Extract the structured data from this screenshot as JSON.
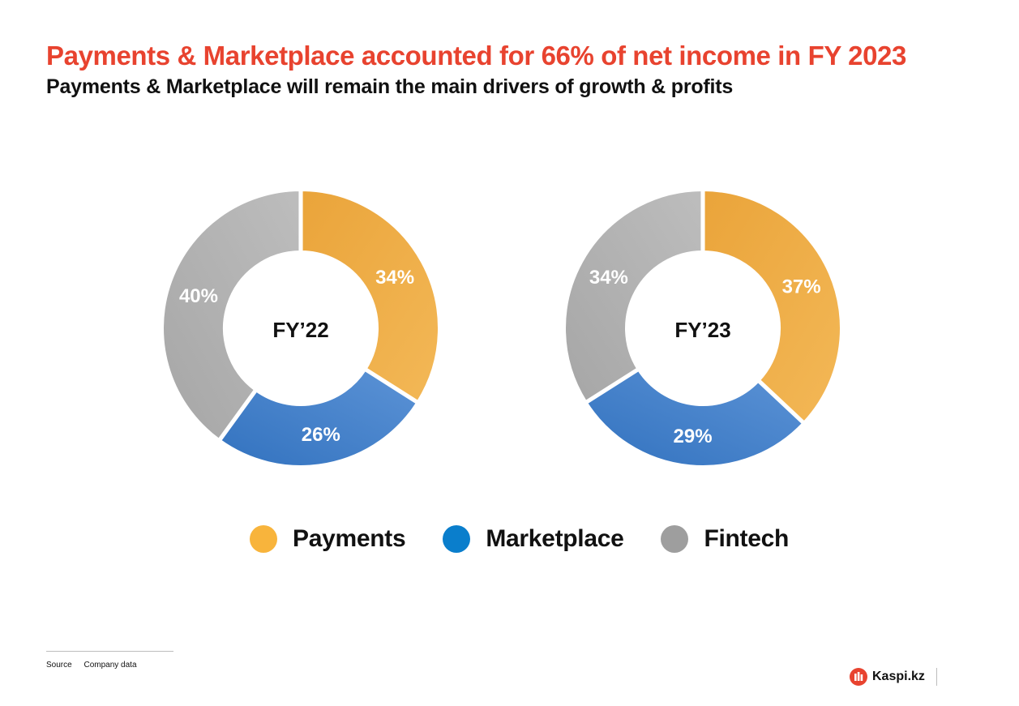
{
  "header": {
    "title": "Payments & Marketplace accounted for 66% of net income in FY 2023",
    "subtitle": "Payments & Marketplace will remain the main drivers of growth & profits"
  },
  "colors": {
    "title": "#E8432F",
    "payments_dark": "#EAA43A",
    "payments_light": "#F3B857",
    "marketplace_dark": "#3272BF",
    "marketplace_light": "#5C93D6",
    "fintech_dark": "#A6A6A6",
    "fintech_light": "#BDBDBD",
    "legend_payments": "#F8B43C",
    "legend_marketplace": "#0A7ECC",
    "legend_fintech": "#9E9E9E"
  },
  "chart_data": [
    {
      "type": "pie",
      "center_label": "FY’22",
      "series": [
        "Payments",
        "Marketplace",
        "Fintech"
      ],
      "values": [
        34,
        26,
        40
      ],
      "labels": [
        "34%",
        "26%",
        "40%"
      ]
    },
    {
      "type": "pie",
      "center_label": "FY’23",
      "series": [
        "Payments",
        "Marketplace",
        "Fintech"
      ],
      "values": [
        37,
        29,
        34
      ],
      "labels": [
        "37%",
        "29%",
        "34%"
      ]
    }
  ],
  "legend": {
    "items": [
      {
        "label": "Payments",
        "color": "#F8B43C"
      },
      {
        "label": "Marketplace",
        "color": "#0A7ECC"
      },
      {
        "label": "Fintech",
        "color": "#9E9E9E"
      }
    ]
  },
  "footer": {
    "source_label": "Source",
    "source_value": "Company data",
    "brand": "Kaspi.kz"
  }
}
